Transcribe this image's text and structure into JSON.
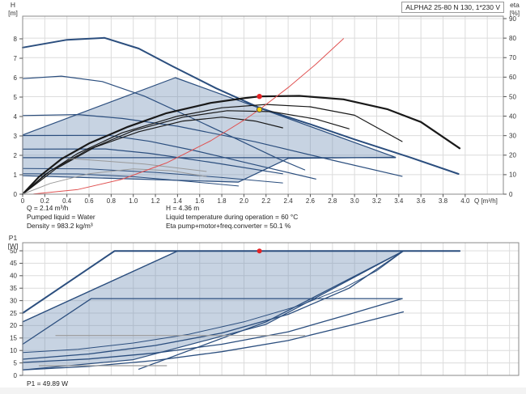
{
  "model_box": {
    "label": "ALPHA2 25-80 N 130, 1*230 V"
  },
  "axis_titles": {
    "top_left_1": "H",
    "top_left_2": "[m]",
    "top_right_1": "eta",
    "top_right_2": "[%]",
    "bottom_left_1": "P1",
    "bottom_left_2": "[W]",
    "x_unit": "Q [m³/h]"
  },
  "top_annotations": {
    "q": "Q = 2.14 m³/h",
    "liquid": "Pumped liquid = Water",
    "density": "Density = 983.2 kg/m³",
    "h": "H = 4.36 m",
    "temp": "Liquid temperature during operation = 60 °C",
    "eta": "Eta pump+motor+freq.converter = 50.1 %"
  },
  "bottom_annotation": {
    "p1": "P1 = 49.89 W"
  },
  "colors": {
    "pump_curve_blue": "#2b4e7e",
    "eta_curve_black": "#191919",
    "system_curve_red": "#e05252",
    "reference_gray": "#9a9a9a",
    "region_fill": "rgba(109,140,180,0.38)",
    "duty_point_red": "#e62325",
    "rated_point_yellow": "#ffd400",
    "grid": "#dcdcdc",
    "plot_border": "#8a8a8a"
  },
  "chart_data": [
    {
      "id": "hq",
      "type": "line",
      "title": "Head / efficiency vs flow",
      "xlabel": "Q [m³/h]",
      "x": {
        "min": 0,
        "grid_max": 4.345,
        "tick_max": 4.0,
        "step": 0.2
      },
      "left_axis": {
        "label": "H [m]",
        "min": 0,
        "max": 9.1667,
        "tick_step": 1,
        "tick_max": 8
      },
      "right_axis": {
        "label": "eta [%]",
        "min": 0,
        "max": 91.25,
        "tick_step": 10,
        "tick_max": 90
      },
      "regions": [
        {
          "name": "operating-range-region",
          "axis": "left",
          "fill": "rgba(109,140,180,0.38)",
          "stroke": "#2b4e7e",
          "width": 1.2,
          "points": [
            [
              0,
              3.05
            ],
            [
              1.38,
              6.0
            ],
            [
              3.37,
              1.9
            ],
            [
              2.4,
              1.84
            ],
            [
              1.95,
              0.62
            ],
            [
              0,
              0.95
            ]
          ]
        }
      ],
      "series": [
        {
          "name": "pump-curve-max-speed",
          "axis": "left",
          "color": "#2b4e7e",
          "width": 2,
          "points": [
            [
              0,
              7.55
            ],
            [
              0.4,
              7.95
            ],
            [
              0.74,
              8.05
            ],
            [
              1.05,
              7.5
            ],
            [
              1.35,
              6.6
            ],
            [
              1.75,
              5.45
            ],
            [
              2.14,
              4.45
            ],
            [
              2.6,
              3.6
            ],
            [
              3.0,
              2.82
            ],
            [
              3.5,
              1.9
            ],
            [
              3.94,
              1.04
            ]
          ]
        },
        {
          "name": "pump-curve-2",
          "axis": "left",
          "color": "#2b4e7e",
          "width": 1.2,
          "points": [
            [
              0,
              5.95
            ],
            [
              0.35,
              6.08
            ],
            [
              0.72,
              5.8
            ],
            [
              1.1,
              5.05
            ],
            [
              1.5,
              4.0
            ],
            [
              1.95,
              2.8
            ],
            [
              2.3,
              1.85
            ],
            [
              2.55,
              1.25
            ]
          ]
        },
        {
          "name": "pump-curve-3",
          "axis": "left",
          "color": "#2b4e7e",
          "width": 1.2,
          "points": [
            [
              0,
              4.05
            ],
            [
              0.5,
              4.1
            ],
            [
              0.9,
              3.9
            ],
            [
              1.4,
              3.5
            ],
            [
              2.1,
              2.7
            ],
            [
              2.8,
              1.75
            ],
            [
              3.43,
              0.92
            ]
          ]
        },
        {
          "name": "pump-curve-4",
          "axis": "left",
          "color": "#2b4e7e",
          "width": 1.2,
          "points": [
            [
              0,
              3.02
            ],
            [
              0.78,
              3.03
            ],
            [
              1.15,
              2.72
            ],
            [
              1.55,
              2.25
            ],
            [
              2.0,
              1.65
            ],
            [
              2.65,
              0.78
            ]
          ]
        },
        {
          "name": "pump-curve-5",
          "axis": "left",
          "color": "#2b4e7e",
          "width": 1.2,
          "points": [
            [
              0,
              2.32
            ],
            [
              0.75,
              2.33
            ],
            [
              1.15,
              2.1
            ],
            [
              1.75,
              1.6
            ],
            [
              2.35,
              1.05
            ]
          ]
        },
        {
          "name": "const-pressure-line",
          "axis": "left",
          "color": "#2b4e7e",
          "width": 1.2,
          "points": [
            [
              0,
              1.88
            ],
            [
              3.37,
              1.88
            ]
          ]
        },
        {
          "name": "pump-curve-6",
          "axis": "left",
          "color": "#2b4e7e",
          "width": 1,
          "points": [
            [
              0,
              1.32
            ],
            [
              0.6,
              1.3
            ],
            [
              1.2,
              1.12
            ],
            [
              1.8,
              0.86
            ],
            [
              2.35,
              0.58
            ]
          ]
        },
        {
          "name": "pump-curve-min-speed",
          "axis": "left",
          "color": "#2b4e7e",
          "width": 1,
          "points": [
            [
              0,
              1.05
            ],
            [
              0.5,
              1.04
            ],
            [
              1.0,
              0.9
            ],
            [
              1.5,
              0.66
            ],
            [
              1.95,
              0.42
            ]
          ]
        },
        {
          "name": "eta-curve-max",
          "axis": "right",
          "color": "#191919",
          "width": 2.2,
          "points": [
            [
              0,
              0
            ],
            [
              0.15,
              9
            ],
            [
              0.35,
              18
            ],
            [
              0.6,
              26
            ],
            [
              0.95,
              34.5
            ],
            [
              1.3,
              41.5
            ],
            [
              1.7,
              46.8
            ],
            [
              2.0,
              49.2
            ],
            [
              2.14,
              50.1
            ],
            [
              2.5,
              50.4
            ],
            [
              2.9,
              48.6
            ],
            [
              3.3,
              43.5
            ],
            [
              3.6,
              37
            ],
            [
              3.95,
              23.5
            ]
          ]
        },
        {
          "name": "eta-curve-2",
          "axis": "right",
          "color": "#191919",
          "width": 1.2,
          "points": [
            [
              0,
              0
            ],
            [
              0.2,
              10
            ],
            [
              0.5,
              21
            ],
            [
              0.9,
              31.5
            ],
            [
              1.4,
              40
            ],
            [
              1.8,
              44.3
            ],
            [
              2.2,
              46
            ],
            [
              2.6,
              44.8
            ],
            [
              3.0,
              40.5
            ],
            [
              3.43,
              27
            ]
          ]
        },
        {
          "name": "eta-curve-3",
          "axis": "right",
          "color": "#191919",
          "width": 1.2,
          "points": [
            [
              0,
              0
            ],
            [
              0.25,
              12
            ],
            [
              0.6,
              23
            ],
            [
              1.0,
              32.5
            ],
            [
              1.45,
              39.5
            ],
            [
              1.85,
              42.8
            ],
            [
              2.25,
              42.3
            ],
            [
              2.65,
              38.5
            ],
            [
              2.95,
              33.5
            ]
          ]
        },
        {
          "name": "eta-curve-4",
          "axis": "right",
          "color": "#191919",
          "width": 1.2,
          "points": [
            [
              0,
              0
            ],
            [
              0.3,
              13
            ],
            [
              0.65,
              24
            ],
            [
              1.05,
              32
            ],
            [
              1.45,
              37.5
            ],
            [
              1.8,
              39.5
            ],
            [
              2.1,
              37.5
            ],
            [
              2.35,
              34
            ]
          ]
        },
        {
          "name": "eta-curve-low-gray",
          "axis": "right",
          "color": "#9a9a9a",
          "width": 1,
          "points": [
            [
              0,
              0
            ],
            [
              0.25,
              5.5
            ],
            [
              0.6,
              10.5
            ],
            [
              1.0,
              13
            ],
            [
              1.35,
              12
            ],
            [
              1.66,
              9
            ]
          ]
        },
        {
          "name": "reference-line-gray",
          "axis": "left",
          "color": "#9a9a9a",
          "width": 1,
          "points": [
            [
              0.4,
              1.85
            ],
            [
              1.1,
              1.55
            ],
            [
              1.66,
              1.17
            ]
          ]
        },
        {
          "name": "system-curve-red",
          "axis": "left",
          "color": "#e05252",
          "width": 1,
          "points": [
            [
              0.1,
              0.01
            ],
            [
              0.5,
              0.24
            ],
            [
              0.9,
              0.77
            ],
            [
              1.3,
              1.61
            ],
            [
              1.7,
              2.75
            ],
            [
              2.0,
              3.81
            ],
            [
              2.14,
              4.36
            ],
            [
              2.4,
              5.49
            ],
            [
              2.65,
              6.69
            ],
            [
              2.9,
              8.01
            ]
          ]
        }
      ],
      "markers": [
        {
          "name": "eta-duty-point",
          "axis": "right",
          "x": 2.14,
          "v": 50.1,
          "r": 3.2,
          "fill": "#e62325"
        },
        {
          "name": "duty-point",
          "axis": "left",
          "x": 2.14,
          "v": 4.36,
          "r": 3.2,
          "fill": "#ffd400",
          "stroke": "#4a4a4a"
        }
      ],
      "duty_point": {
        "Q_m3h": 2.14,
        "H_m": 4.36,
        "eta_pct": 50.1
      }
    },
    {
      "id": "p1",
      "type": "line",
      "title": "Power input vs flow",
      "xlabel": "Q [m³/h]",
      "x": {
        "min": 0,
        "grid_max": 4.483,
        "tick_max": null,
        "step": 0.2
      },
      "left_axis": {
        "label": "P1 [W]",
        "min": 0,
        "max": 53.25,
        "tick_step": 5,
        "tick_max": 50
      },
      "regions": [
        {
          "name": "power-range-region",
          "axis": "left",
          "fill": "rgba(109,140,180,0.38)",
          "stroke": "#2b4e7e",
          "width": 1.2,
          "points": [
            [
              0,
              21.5
            ],
            [
              1.4,
              49.9
            ],
            [
              3.44,
              49.9
            ],
            [
              2.2,
              20.5
            ],
            [
              1.0,
              6.3
            ],
            [
              0,
              2.2
            ]
          ]
        }
      ],
      "series": [
        {
          "name": "power-curve-max",
          "axis": "left",
          "color": "#2b4e7e",
          "width": 2,
          "points": [
            [
              0,
              25
            ],
            [
              0.83,
              49.9
            ],
            [
              3.95,
              49.9
            ]
          ]
        },
        {
          "name": "power-curve-2",
          "axis": "left",
          "color": "#2b4e7e",
          "width": 1.3,
          "points": [
            [
              0,
              21.5
            ],
            [
              1.4,
              49.9
            ]
          ]
        },
        {
          "name": "power-curve-speed2",
          "axis": "left",
          "color": "#2b4e7e",
          "width": 1.3,
          "points": [
            [
              0,
              12.5
            ],
            [
              0.62,
              30.8
            ],
            [
              3.43,
              30.8
            ]
          ]
        },
        {
          "name": "power-curve-4",
          "axis": "left",
          "color": "#2b4e7e",
          "width": 1.3,
          "points": [
            [
              0,
              6.5
            ],
            [
              0.6,
              8.6
            ],
            [
              1.2,
              12
            ],
            [
              1.8,
              17
            ],
            [
              2.4,
              24.5
            ],
            [
              2.95,
              35
            ],
            [
              3.44,
              49.9
            ]
          ]
        },
        {
          "name": "power-curve-5",
          "axis": "left",
          "color": "#2b4e7e",
          "width": 1.3,
          "points": [
            [
              0,
              5.2
            ],
            [
              0.6,
              6.6
            ],
            [
              1.2,
              9
            ],
            [
              1.8,
              12.5
            ],
            [
              2.4,
              17.5
            ],
            [
              2.95,
              24.5
            ],
            [
              3.43,
              30.8
            ]
          ]
        },
        {
          "name": "power-curve-6",
          "axis": "left",
          "color": "#2b4e7e",
          "width": 1.3,
          "points": [
            [
              0,
              2.2
            ],
            [
              0.6,
              3.6
            ],
            [
              1.2,
              6
            ],
            [
              1.8,
              9.5
            ],
            [
              2.4,
              14
            ],
            [
              3.0,
              20.5
            ],
            [
              3.44,
              25.5
            ]
          ]
        },
        {
          "name": "power-curve-7",
          "axis": "left",
          "color": "#2b4e7e",
          "width": 1.3,
          "points": [
            [
              1.05,
              2.5
            ],
            [
              2.2,
              21.5
            ],
            [
              3.44,
              49.9
            ]
          ]
        },
        {
          "name": "power-curve-8",
          "axis": "left",
          "color": "#2b4e7e",
          "width": 1,
          "points": [
            [
              0,
              9.2
            ],
            [
              0.5,
              10.5
            ],
            [
              1.0,
              13
            ],
            [
              1.5,
              16.5
            ],
            [
              2.0,
              21.5
            ],
            [
              2.5,
              28
            ],
            [
              2.9,
              35
            ],
            [
              3.2,
              42
            ],
            [
              3.44,
              49.9
            ]
          ]
        },
        {
          "name": "power-reference-gray-low",
          "axis": "left",
          "color": "#9a9a9a",
          "width": 1.2,
          "points": [
            [
              0.15,
              3.9
            ],
            [
              1.3,
              3.9
            ]
          ]
        },
        {
          "name": "power-reference-gray-mid",
          "axis": "left",
          "color": "#9a9a9a",
          "width": 1.2,
          "points": [
            [
              0.3,
              16
            ],
            [
              2.55,
              16
            ]
          ]
        }
      ],
      "markers": [
        {
          "name": "power-duty-point",
          "axis": "left",
          "x": 2.14,
          "v": 49.89,
          "r": 3,
          "fill": "#e62325"
        }
      ],
      "duty_point": {
        "Q_m3h": 2.14,
        "P1_W": 49.89
      }
    }
  ]
}
